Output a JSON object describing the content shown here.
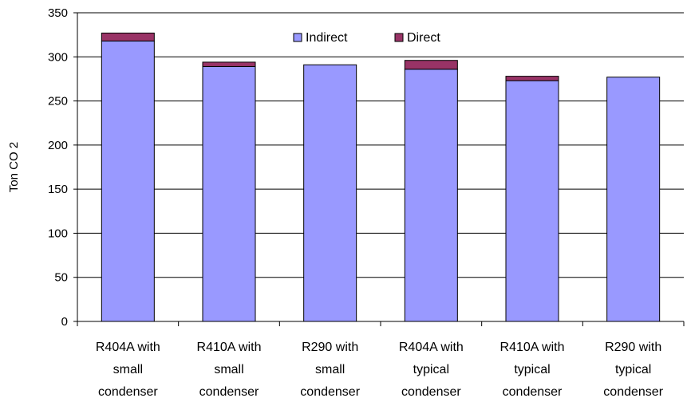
{
  "chart_data": {
    "type": "bar",
    "stacked": true,
    "title": "",
    "xlabel": "",
    "ylabel": "Ton CO 2",
    "ylim": [
      0,
      350
    ],
    "yticks": [
      0,
      50,
      100,
      150,
      200,
      250,
      300,
      350
    ],
    "grid": "horizontal",
    "legend_position": "top-center",
    "categories": [
      [
        "R404A with",
        "small",
        "condenser"
      ],
      [
        "R410A with",
        "small",
        "condenser"
      ],
      [
        "R290 with",
        "small",
        "condenser"
      ],
      [
        "R404A with",
        "typical",
        "condenser"
      ],
      [
        "R410A with",
        "typical",
        "condenser"
      ],
      [
        "R290 with",
        "typical",
        "condenser"
      ]
    ],
    "series": [
      {
        "name": "Indirect",
        "color": "#9999ff",
        "values": [
          318,
          289,
          291,
          286,
          273,
          277
        ]
      },
      {
        "name": "Direct",
        "color": "#993366",
        "values": [
          9,
          5,
          0,
          10,
          5,
          0
        ]
      }
    ]
  }
}
